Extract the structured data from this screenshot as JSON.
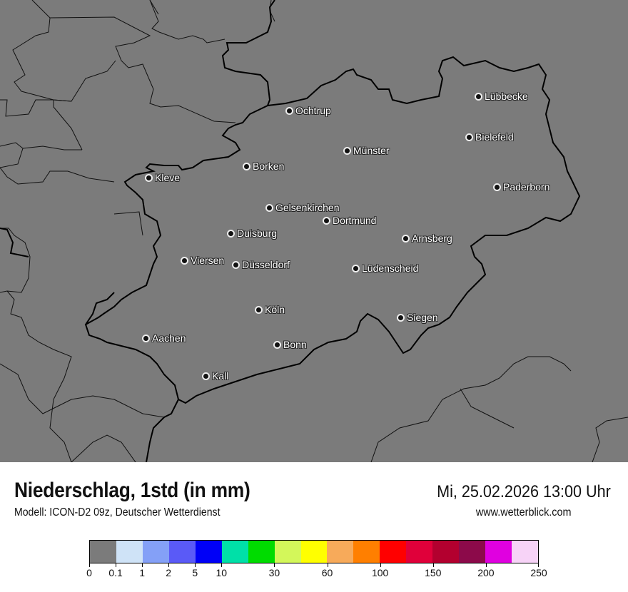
{
  "header": {
    "title": "Niederschlag, 1std (in mm)",
    "subtitle": "Modell: ICON-D2 09z, Deutscher Wetterdienst",
    "datetime": "Mi, 25.02.2026 13:00 Uhr",
    "website": "www.wetterblick.com"
  },
  "map": {
    "background_color": "#7b7b7b",
    "cities": [
      {
        "name": "Lübbecke"
      },
      {
        "name": "Ochtrup"
      },
      {
        "name": "Bielefeld"
      },
      {
        "name": "Münster"
      },
      {
        "name": "Borken"
      },
      {
        "name": "Kleve"
      },
      {
        "name": "Paderborn"
      },
      {
        "name": "Gelsenkirchen"
      },
      {
        "name": "Dortmund"
      },
      {
        "name": "Duisburg"
      },
      {
        "name": "Arnsberg"
      },
      {
        "name": "Viersen"
      },
      {
        "name": "Düsseldorf"
      },
      {
        "name": "Lüdenscheid"
      },
      {
        "name": "Köln"
      },
      {
        "name": "Siegen"
      },
      {
        "name": "Aachen"
      },
      {
        "name": "Bonn"
      },
      {
        "name": "Kall"
      }
    ]
  },
  "legend": {
    "colors": [
      "#7b7b7b",
      "#cfe3f7",
      "#84a0f7",
      "#5a5af7",
      "#0000f7",
      "#00e0a8",
      "#00dc00",
      "#d3f75a",
      "#ffff00",
      "#f7aa5a",
      "#ff7f00",
      "#ff0000",
      "#e0003a",
      "#b3002f",
      "#8c0a4a",
      "#e000e0",
      "#f7d3f7"
    ],
    "ticks": [
      {
        "label": "0",
        "index": 0
      },
      {
        "label": "0.1",
        "index": 1
      },
      {
        "label": "1",
        "index": 2
      },
      {
        "label": "2",
        "index": 3
      },
      {
        "label": "5",
        "index": 4
      },
      {
        "label": "10",
        "index": 5
      },
      {
        "label": "30",
        "index": 7
      },
      {
        "label": "60",
        "index": 9
      },
      {
        "label": "100",
        "index": 11
      },
      {
        "label": "150",
        "index": 13
      },
      {
        "label": "200",
        "index": 15
      },
      {
        "label": "250",
        "index": 17
      }
    ]
  }
}
